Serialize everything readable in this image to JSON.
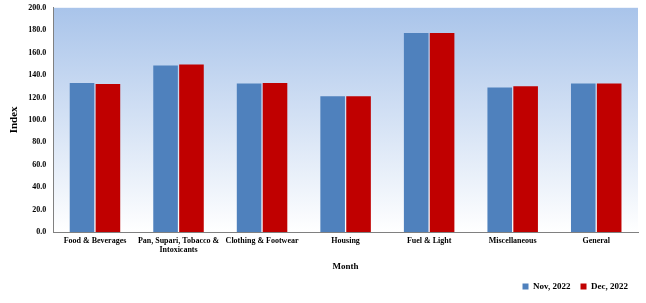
{
  "chart_data": {
    "type": "bar",
    "categories": [
      "Food & Beverages",
      "Pan, Supari, Tobacco & Intoxicants",
      "Clothing & Footwear",
      "Housing",
      "Fuel & Light",
      "Miscellaneous",
      "General"
    ],
    "series": [
      {
        "name": "Nov, 2022",
        "color": "#4f81bd",
        "values": [
          133.0,
          148.5,
          132.5,
          121.0,
          177.5,
          129.0,
          132.5
        ]
      },
      {
        "name": "Dec, 2022",
        "color": "#c00000",
        "values": [
          132.0,
          149.5,
          133.0,
          121.0,
          177.5,
          130.0,
          132.5
        ]
      }
    ],
    "x_label": "Month",
    "y_label": "Index",
    "ylim": [
      0,
      200
    ],
    "yticks": [
      {
        "value": 0,
        "label": "0.0"
      },
      {
        "value": 20,
        "label": "20.0"
      },
      {
        "value": 40,
        "label": "40.0"
      },
      {
        "value": 60,
        "label": "60.0"
      },
      {
        "value": 80,
        "label": "80.0"
      },
      {
        "value": 100,
        "label": "100.0"
      },
      {
        "value": 120,
        "label": "120.0"
      },
      {
        "value": 140,
        "label": "140.0"
      },
      {
        "value": 160,
        "label": "160.0"
      },
      {
        "value": 180,
        "label": "180.0"
      },
      {
        "value": 200,
        "label": "200.0"
      }
    ],
    "grid": false,
    "legend": "bottom-right"
  }
}
